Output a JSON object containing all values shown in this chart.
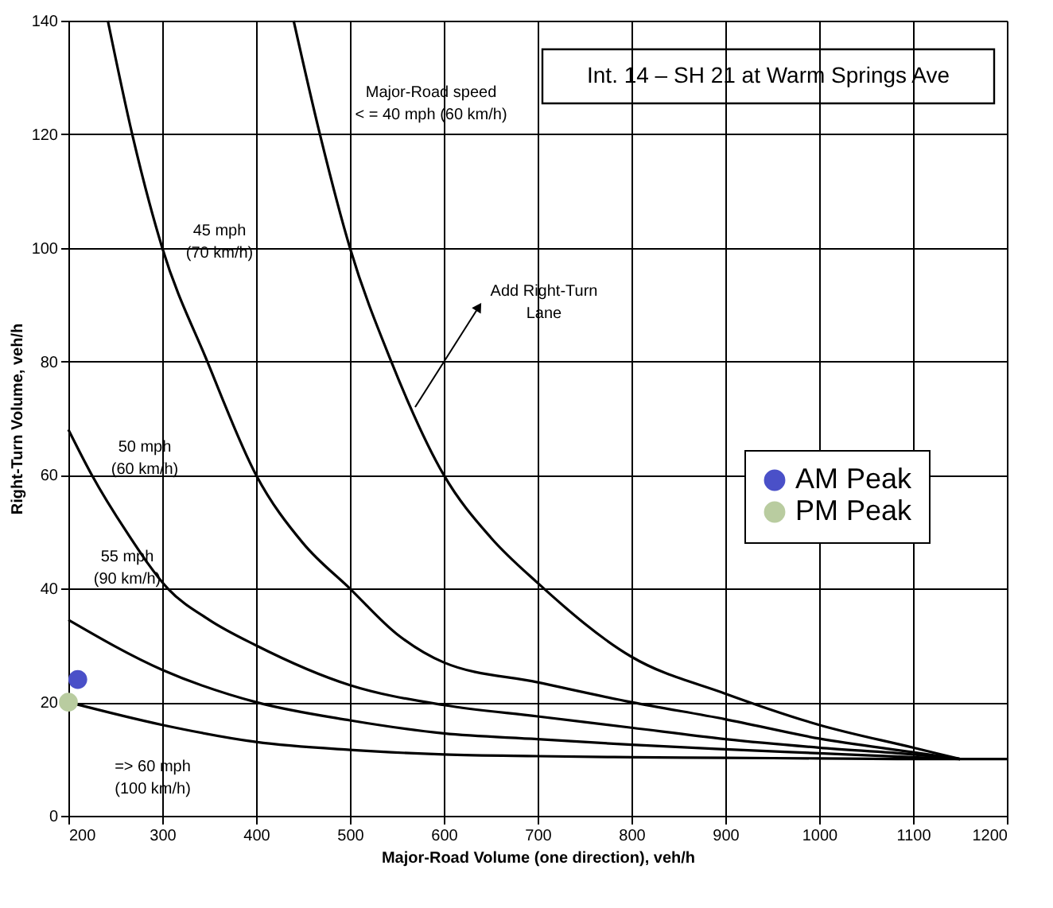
{
  "chart_data": {
    "type": "line",
    "title": "Int. 14 – SH 21 at Warm Springs Ave",
    "xlabel": "Major-Road Volume (one direction), veh/h",
    "ylabel": "Right-Turn Volume, veh/h",
    "xlim": [
      200,
      1200
    ],
    "xticks": [
      200,
      300,
      400,
      500,
      600,
      700,
      800,
      900,
      1000,
      1100,
      1200
    ],
    "ylim": [
      0,
      140
    ],
    "yticks": [
      0,
      20,
      40,
      60,
      80,
      100,
      120,
      140
    ],
    "grid": true,
    "legend": "right",
    "line_style": "solid",
    "series": [
      {
        "color": "#000000",
        "marker": "none",
        "x": [
          440,
          468,
          500,
          544,
          600,
          650,
          700,
          800,
          900,
          1000,
          1100,
          1150
        ],
        "values": [
          140,
          120,
          100,
          80,
          60,
          49,
          41,
          28,
          21.5,
          16,
          12,
          10
        ]
      },
      {
        "color": "#000000",
        "marker": "none",
        "x": [
          242,
          268,
          300,
          348,
          400,
          450,
          500,
          550,
          600,
          700,
          800,
          900,
          1000,
          1100,
          1150
        ],
        "values": [
          140,
          120,
          100,
          80,
          60,
          48,
          40,
          32,
          27,
          23.5,
          20,
          17,
          13.6,
          11.2,
          10
        ]
      },
      {
        "color": "#000000",
        "marker": "none",
        "x": [
          200,
          225,
          262,
          306,
          350,
          400,
          500,
          600,
          700,
          800,
          900,
          1000,
          1100,
          1150
        ],
        "values": [
          68,
          60,
          50,
          40,
          34.5,
          30,
          23,
          19.5,
          17.5,
          15.5,
          13.5,
          12,
          10.8,
          10
        ]
      },
      {
        "color": "#000000",
        "marker": "none",
        "x": [
          200,
          300,
          400,
          500,
          600,
          700,
          800,
          900,
          1000,
          1100,
          1150
        ],
        "values": [
          34.5,
          25.7,
          20,
          16.8,
          14.5,
          13.5,
          12.5,
          11.7,
          11,
          10.3,
          10
        ]
      },
      {
        "color": "#000000",
        "marker": "none",
        "x": [
          200,
          300,
          400,
          500,
          600,
          700,
          800,
          900,
          1000,
          1100,
          1200
        ],
        "values": [
          20,
          16,
          13,
          11.6,
          10.8,
          10.5,
          10.3,
          10.2,
          10.1,
          10,
          10
        ]
      },
      {
        "type": "scatter",
        "name": "AM Peak",
        "color": "#4a50c8",
        "marker": "circle",
        "x": [
          210
        ],
        "values": [
          24
        ]
      },
      {
        "type": "scatter",
        "name": "PM Peak",
        "color": "#b9cca0",
        "marker": "circle",
        "x": [
          200
        ],
        "values": [
          20
        ]
      }
    ],
    "annotations": [
      "Major-Road speed\n< = 40 mph (60 km/h)",
      "45 mph\n(70 km/h)",
      "50 mph\n(60 km/h)",
      "55 mph\n(90 km/h)",
      "=> 60 mph\n(100 km/h)",
      "Add Right-Turn\nLane"
    ]
  }
}
